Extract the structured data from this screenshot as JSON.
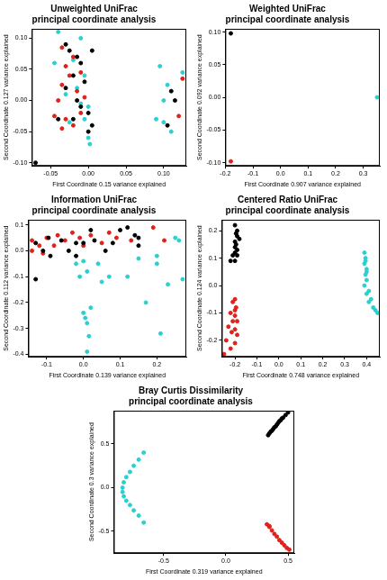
{
  "chart_data": [
    {
      "type": "scatter",
      "title": "Unweighted UniFrac\nprincipal coordinate analysis",
      "x_label": "First Coordinate 0.15 variance explained",
      "y_label": "Second Coordinate 0.127 variance explained",
      "xlim": [
        -0.075,
        0.13
      ],
      "ylim": [
        -0.105,
        0.115
      ],
      "xticks": [
        -0.05,
        {
          "value": 0,
          "label": "0.00"
        },
        0.05,
        {
          "value": 0.1,
          "label": "0.10"
        }
      ],
      "yticks": [
        {
          "value": -0.1,
          "label": "-0.10"
        },
        -0.05,
        {
          "value": 0,
          "label": "0.00"
        },
        0.05,
        {
          "value": 0.1,
          "label": "0.10"
        }
      ],
      "grid": false,
      "marker": "circle",
      "series": [
        {
          "color": "#000000",
          "x": [
            -0.03,
            -0.025,
            -0.015,
            -0.01,
            -0.02,
            -0.005,
            -0.03,
            -0.015,
            -0.01,
            0,
            -0.02,
            -0.04,
            0.005,
            0,
            -0.07,
            0.11,
            0.105,
            0.115,
            0.005
          ],
          "y": [
            0.09,
            0.08,
            0.07,
            0.06,
            0.04,
            0.03,
            0.02,
            0,
            -0.01,
            -0.02,
            -0.03,
            -0.03,
            -0.04,
            -0.05,
            -0.1,
            0.015,
            -0.04,
            0,
            0.08
          ]
        },
        {
          "color": "#e0201b",
          "x": [
            -0.035,
            -0.02,
            -0.03,
            -0.025,
            -0.01,
            -0.035,
            -0.015,
            -0.045,
            -0.03,
            -0.035,
            -0.02,
            -0.01,
            -0.005,
            0.125,
            0.12,
            -0.04
          ],
          "y": [
            0.085,
            0.07,
            0.055,
            0.04,
            0.045,
            0.025,
            0.015,
            -0.025,
            -0.03,
            -0.045,
            -0.04,
            -0.02,
            0.005,
            0.035,
            -0.025,
            0
          ]
        },
        {
          "color": "#2bcfcf",
          "x": [
            -0.04,
            -0.045,
            -0.02,
            -0.01,
            -0.005,
            -0.03,
            -0.01,
            0,
            -0.005,
            0,
            0.002,
            -0.025,
            0.095,
            0.1,
            0.1,
            0.11,
            0.125,
            0.09,
            0.105,
            -0.015
          ],
          "y": [
            0.11,
            0.06,
            0.065,
            0.1,
            0.04,
            0.01,
            -0.005,
            -0.01,
            -0.03,
            -0.06,
            -0.07,
            -0.035,
            0.055,
            0,
            -0.035,
            -0.05,
            0.045,
            -0.03,
            0.025,
            0.02
          ]
        }
      ]
    },
    {
      "type": "scatter",
      "title": "Weighted UniFrac\nprincipal coordinate analysis",
      "x_label": "First Coordinate 0.907 variance explained",
      "y_label": "Second Coordinate 0.092 variance explained",
      "xlim": [
        -0.2,
        0.36
      ],
      "ylim": [
        -0.105,
        0.105
      ],
      "xticks": [
        -0.2,
        -0.1,
        {
          "value": 0,
          "label": "0.0"
        },
        0.1,
        0.2,
        0.3
      ],
      "yticks": [
        {
          "value": -0.1,
          "label": "-0.10"
        },
        -0.05,
        {
          "value": 0,
          "label": "0.00"
        },
        0.05,
        {
          "value": 0.1,
          "label": "0.10"
        }
      ],
      "grid": false,
      "marker": "circle",
      "series": [
        {
          "color": "#000000",
          "x": [
            -0.18
          ],
          "y": [
            0.098
          ]
        },
        {
          "color": "#e0201b",
          "x": [
            -0.18
          ],
          "y": [
            -0.098
          ]
        },
        {
          "color": "#2bcfcf",
          "x": [
            0.35
          ],
          "y": [
            0
          ]
        }
      ]
    },
    {
      "type": "scatter",
      "title": "Information UniFrac\nprincipal coordinate analysis",
      "x_label": "First Coordinate 0.139 variance explained",
      "y_label": "Second Coordinate 0.112 variance explained",
      "xlim": [
        -0.15,
        0.28
      ],
      "ylim": [
        -0.41,
        0.12
      ],
      "xticks": [
        -0.1,
        {
          "value": 0,
          "label": "0.0"
        },
        0.1,
        0.2
      ],
      "yticks": [
        -0.4,
        -0.3,
        -0.2,
        -0.1,
        {
          "value": 0,
          "label": "0.0"
        },
        0.1
      ],
      "grid": false,
      "marker": "circle",
      "series": [
        {
          "color": "#000000",
          "x": [
            -0.13,
            -0.11,
            -0.095,
            -0.09,
            -0.06,
            -0.04,
            -0.02,
            0,
            0.03,
            0.06,
            0.08,
            0.1,
            0.12,
            0.14,
            0.15,
            0.15,
            -0.13,
            -0.02,
            0.02
          ],
          "y": [
            0.03,
            0,
            0.05,
            -0.02,
            0.04,
            0,
            0.03,
            0.03,
            0.04,
            0,
            0.03,
            0.08,
            0.09,
            0.06,
            0.05,
            0.02,
            -0.11,
            -0.02,
            0.08
          ]
        },
        {
          "color": "#e0201b",
          "x": [
            -0.14,
            -0.14,
            -0.12,
            -0.1,
            -0.08,
            -0.07,
            -0.05,
            -0.03,
            -0.01,
            0,
            0.02,
            0.05,
            0.07,
            0.09,
            0.13,
            0.19,
            0.22,
            -0.11
          ],
          "y": [
            0.04,
            0,
            0.02,
            0.05,
            0.02,
            0.06,
            0.04,
            0.07,
            0.05,
            0.02,
            0.06,
            0.03,
            0.07,
            0.05,
            0.04,
            0.09,
            0.04,
            -0.01
          ]
        },
        {
          "color": "#2bcfcf",
          "x": [
            -0.02,
            -0.01,
            0,
            0.01,
            0,
            0.005,
            0.01,
            0.02,
            0.015,
            0.01,
            0.04,
            0.05,
            0.07,
            0.12,
            0.15,
            0.17,
            0.2,
            0.21,
            0.23,
            0.25,
            0.26,
            0.27,
            0.2
          ],
          "y": [
            -0.05,
            -0.1,
            -0.04,
            -0.08,
            -0.24,
            -0.26,
            -0.28,
            -0.22,
            -0.33,
            -0.39,
            -0.05,
            -0.12,
            -0.1,
            -0.1,
            -0.03,
            -0.2,
            -0.05,
            -0.32,
            -0.13,
            0.05,
            0.04,
            -0.11,
            -0.02
          ]
        }
      ]
    },
    {
      "type": "scatter",
      "title": "Centered Ratio UniFrac\nprincipal coordinate analysis",
      "x_label": "First Coordinate 0.748 variance explained",
      "y_label": "Second Coordinate 0.124 variance explained",
      "xlim": [
        -0.26,
        0.46
      ],
      "ylim": [
        -0.26,
        0.24
      ],
      "xticks": [
        -0.2,
        -0.1,
        {
          "value": 0,
          "label": "0.0"
        },
        0.1,
        0.2,
        0.3,
        0.4
      ],
      "yticks": [
        -0.2,
        -0.1,
        {
          "value": 0,
          "label": "0.0"
        },
        0.1,
        0.2
      ],
      "grid": false,
      "marker": "circle",
      "series": [
        {
          "color": "#000000",
          "x": [
            -0.2,
            -0.195,
            -0.19,
            -0.2,
            -0.195,
            -0.19,
            -0.2,
            -0.21,
            -0.22,
            -0.2,
            -0.19,
            -0.18,
            -0.19,
            -0.2
          ],
          "y": [
            0.22,
            0.19,
            0.18,
            0.16,
            0.15,
            0.13,
            0.12,
            0.11,
            0.09,
            0.09,
            0.11,
            0.17,
            0.2,
            0.14
          ]
        },
        {
          "color": "#e0201b",
          "x": [
            -0.2,
            -0.21,
            -0.195,
            -0.22,
            -0.2,
            -0.21,
            -0.19,
            -0.23,
            -0.2,
            -0.215,
            -0.19,
            -0.24,
            -0.2,
            -0.22,
            -0.25,
            -0.2
          ],
          "y": [
            -0.05,
            -0.06,
            -0.08,
            -0.1,
            -0.11,
            -0.13,
            -0.13,
            -0.15,
            -0.16,
            -0.17,
            -0.18,
            -0.2,
            -0.21,
            -0.23,
            -0.25,
            -0.09
          ]
        },
        {
          "color": "#2bcfcf",
          "x": [
            0.39,
            0.395,
            0.39,
            0.4,
            0.395,
            0.4,
            0.39,
            0.41,
            0.4,
            0.42,
            0.41,
            0.43,
            0.44,
            0.45,
            0.4,
            0.395
          ],
          "y": [
            0.12,
            0.1,
            0.08,
            0.06,
            0.04,
            0.02,
            0,
            -0.02,
            -0.03,
            -0.05,
            -0.06,
            -0.08,
            -0.09,
            -0.1,
            0.05,
            0.09
          ]
        }
      ]
    },
    {
      "type": "scatter",
      "title": "Bray Curtis Dissimilarity\nprincipal coordinate analysis",
      "x_label": "First Coordinate 0.319 variance explained",
      "y_label": "Second Coordinate 0.3 variance explained",
      "xlim": [
        -0.9,
        0.55
      ],
      "ylim": [
        -0.75,
        0.88
      ],
      "xticks": [
        -0.5,
        {
          "value": 0,
          "label": "0.0"
        },
        0.5
      ],
      "yticks": [
        -0.5,
        {
          "value": 0,
          "label": "0.0"
        },
        0.5
      ],
      "grid": false,
      "marker": "circle",
      "series": [
        {
          "color": "#000000",
          "x": [
            0.34,
            0.35,
            0.36,
            0.37,
            0.38,
            0.39,
            0.4,
            0.41,
            0.42,
            0.43,
            0.44,
            0.45,
            0.46,
            0.48,
            0.5
          ],
          "y": [
            0.6,
            0.62,
            0.64,
            0.65,
            0.67,
            0.69,
            0.7,
            0.72,
            0.74,
            0.76,
            0.77,
            0.79,
            0.8,
            0.83,
            0.86
          ]
        },
        {
          "color": "#e0201b",
          "x": [
            0.33,
            0.35,
            0.37,
            0.39,
            0.41,
            0.43,
            0.45,
            0.47,
            0.49,
            0.51,
            0.35
          ],
          "y": [
            -0.42,
            -0.45,
            -0.49,
            -0.53,
            -0.56,
            -0.6,
            -0.63,
            -0.66,
            -0.69,
            -0.71,
            -0.44
          ]
        },
        {
          "color": "#2bcfcf",
          "x": [
            -0.66,
            -0.7,
            -0.74,
            -0.77,
            -0.8,
            -0.82,
            -0.83,
            -0.83,
            -0.82,
            -0.8,
            -0.77,
            -0.74,
            -0.7,
            -0.66
          ],
          "y": [
            0.4,
            0.32,
            0.25,
            0.18,
            0.12,
            0.06,
            0,
            -0.05,
            -0.1,
            -0.15,
            -0.2,
            -0.26,
            -0.32,
            -0.4
          ]
        }
      ]
    }
  ]
}
